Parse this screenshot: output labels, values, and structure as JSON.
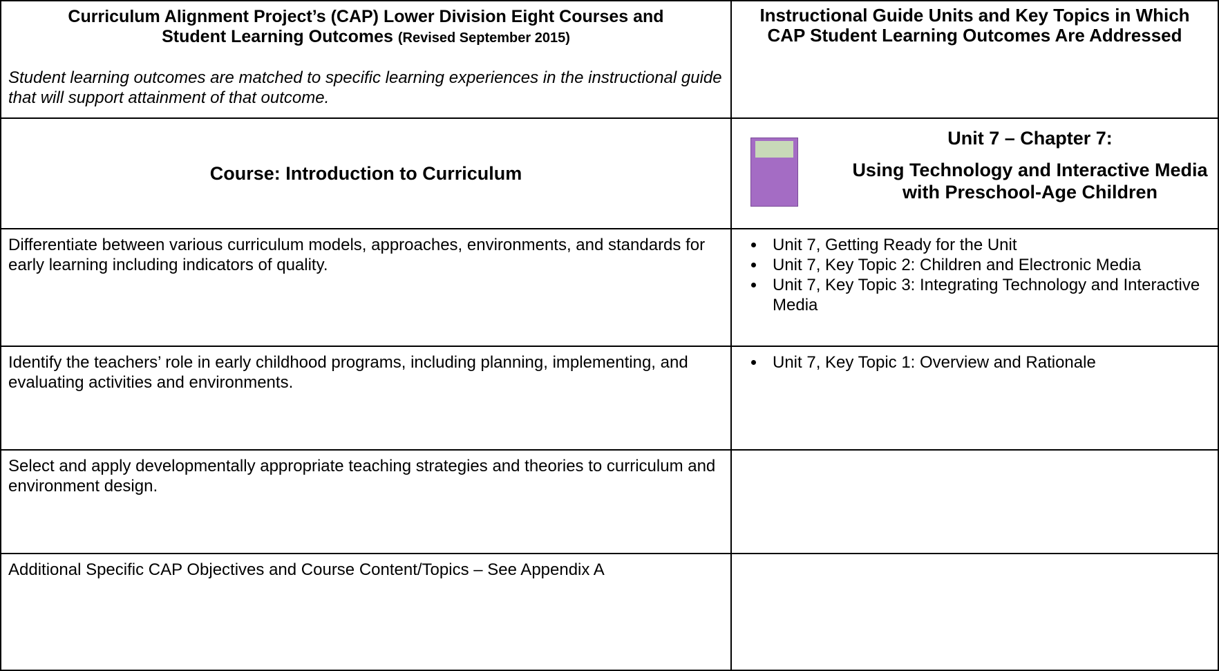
{
  "header": {
    "left": {
      "title": "Curriculum Alignment Project’s (CAP) Lower Division Eight Courses and Student Learning Outcomes",
      "revised": "(Revised September 2015)",
      "note": "Student learning outcomes are matched to specific learning experiences in the instructional guide that will support attainment of that outcome."
    },
    "right": {
      "title": "Instructional Guide Units and Key Topics in Which CAP Student Learning Outcomes Are Addressed"
    }
  },
  "course": {
    "label": "Course:  Introduction to Curriculum",
    "unit": "Unit 7 – Chapter 7:",
    "chapter": "Using Technology and Interactive Media with Preschool-Age Children"
  },
  "rows": [
    {
      "outcome": "Differentiate between various curriculum models, approaches, environments, and standards for early learning including indicators of quality.",
      "topics": [
        "Unit 7, Getting Ready for the Unit",
        "Unit 7, Key Topic 2: Children and Electronic Media",
        "Unit 7, Key Topic 3: Integrating Technology and Interactive Media"
      ]
    },
    {
      "outcome": "Identify the teachers’ role in early childhood programs, including planning, implementing, and evaluating activities and environments.",
      "topics": [
        "Unit 7, Key Topic 1: Overview and Rationale"
      ]
    },
    {
      "outcome": "Select and apply developmentally appropriate teaching strategies and theories to curriculum and environment design.",
      "topics": []
    },
    {
      "outcome": "Additional Specific CAP Objectives and Course Content/Topics – See Appendix A",
      "topics": []
    }
  ]
}
